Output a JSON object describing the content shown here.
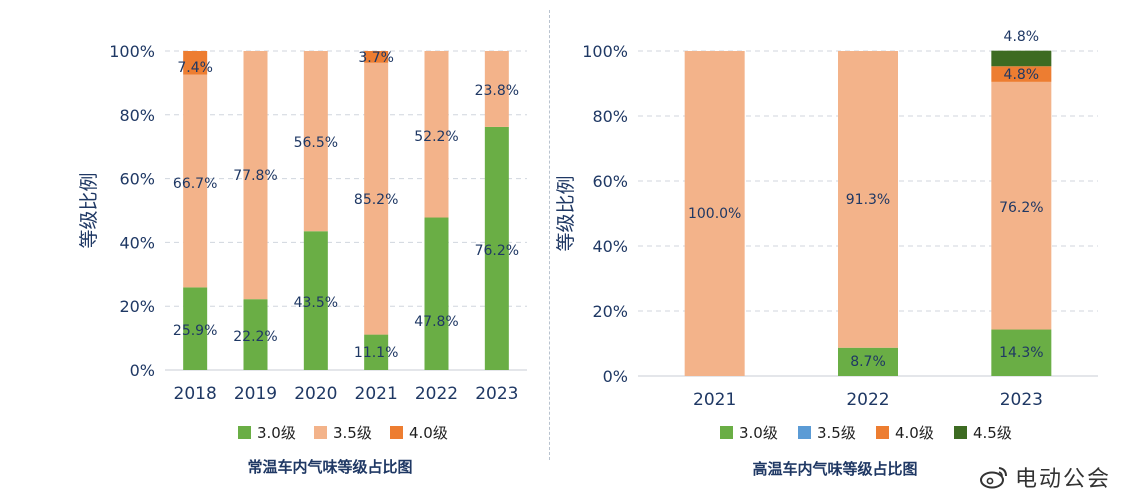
{
  "chart_data": [
    {
      "type": "stacked-bar",
      "title": "常温车内气味等级占比图",
      "ylabel": "等级比例",
      "ylim": [
        0,
        100
      ],
      "yticks": [
        "0%",
        "20%",
        "40%",
        "60%",
        "80%",
        "100%"
      ],
      "categories": [
        "2018",
        "2019",
        "2020",
        "2021",
        "2022",
        "2023"
      ],
      "series": [
        {
          "name": "3.0级",
          "color": "#6aae45",
          "values": [
            25.9,
            22.2,
            43.5,
            11.1,
            47.8,
            76.2
          ],
          "labels": [
            "25.9%",
            "22.2%",
            "43.5%",
            "11.1%",
            "47.8%",
            "76.2%"
          ]
        },
        {
          "name": "3.5级",
          "color": "#f3b38a",
          "values": [
            66.7,
            77.8,
            56.5,
            85.2,
            52.2,
            23.8
          ],
          "labels": [
            "66.7%",
            "77.8%",
            "56.5%",
            "85.2%",
            "52.2%",
            "23.8%"
          ]
        },
        {
          "name": "4.0级",
          "color": "#ed7d31",
          "values": [
            7.4,
            0,
            0,
            3.7,
            0,
            0
          ],
          "labels": [
            "7.4%",
            "",
            "",
            "3.7%",
            "",
            ""
          ]
        }
      ]
    },
    {
      "type": "stacked-bar",
      "title": "高温车内气味等级占比图",
      "ylabel": "等级比例",
      "ylim": [
        0,
        100
      ],
      "yticks": [
        "0%",
        "20%",
        "40%",
        "60%",
        "80%",
        "100%"
      ],
      "categories": [
        "2021",
        "2022",
        "2023"
      ],
      "series": [
        {
          "name": "3.0级",
          "color": "#6aae45",
          "values": [
            0,
            8.7,
            14.3
          ],
          "labels": [
            "",
            "8.7%",
            "14.3%"
          ]
        },
        {
          "name": "3.5级",
          "color": "#5b9bd5",
          "values": [
            0,
            0,
            0
          ],
          "labels": [
            "",
            "",
            ""
          ]
        },
        {
          "name": "3.5级",
          "color": "#f3b38a",
          "values": [
            100,
            91.3,
            76.2
          ],
          "labels": [
            "100.0%",
            "91.3%",
            "76.2%"
          ],
          "legend": false
        },
        {
          "name": "4.0级",
          "color": "#ed7d31",
          "values": [
            0,
            0,
            4.8
          ],
          "labels": [
            "",
            "",
            "4.8%"
          ]
        },
        {
          "name": "4.5级",
          "color": "#3d6b22",
          "values": [
            0,
            0,
            4.8
          ],
          "labels": [
            "",
            "",
            "4.8%"
          ]
        }
      ]
    }
  ],
  "watermark": {
    "text": "电动公会"
  }
}
